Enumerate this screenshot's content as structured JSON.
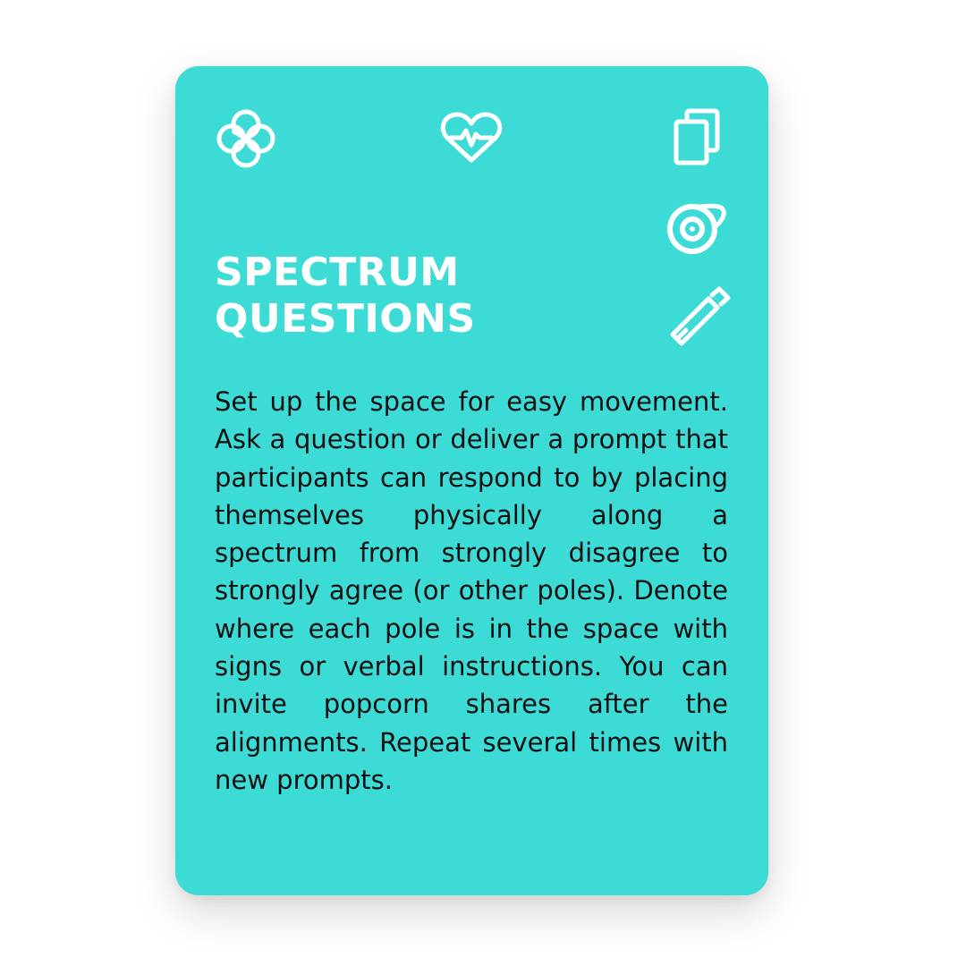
{
  "card": {
    "background_color": "#3ddbd6",
    "icons": [
      "molecule-icon",
      "heart-pulse-icon",
      "cards-icon",
      "tape-icon",
      "marker-icon"
    ],
    "title_lines": [
      "SPECTRUM",
      "QUESTIONS"
    ],
    "description": "Set up the space for easy move­ment. Ask a question or deliver a prompt that participants can re­spond to by placing themselves physically along a spectrum from strongly disagree to strongly agree (or other poles). Denote where each pole is in the space with signs or verbal instructions. You can invite popcorn shares after the alignments. Repeat several times with new prompts."
  }
}
